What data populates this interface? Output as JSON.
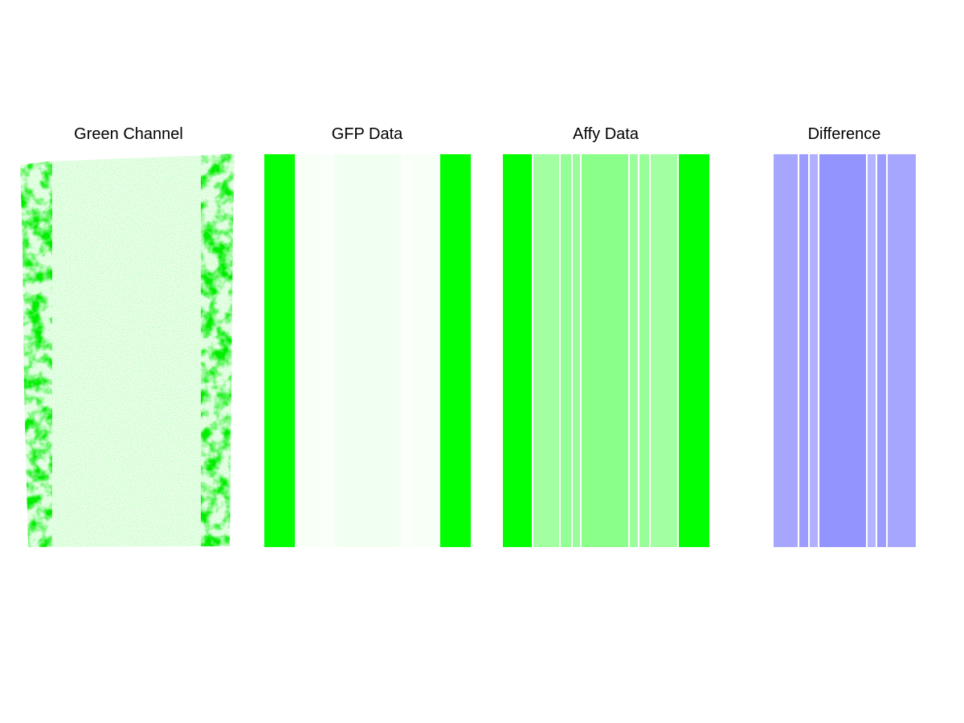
{
  "chart_data": [
    {
      "type": "image",
      "title": "Green Channel",
      "colors": {
        "tissue": "#f2fff2",
        "signal": "#00e000"
      }
    },
    {
      "type": "heatmap",
      "title": "GFP Data",
      "colors": [
        "#00ff00",
        "#f7fff7",
        "#fafffa",
        "#f3fff3",
        "#f1fff1",
        "#f3fff3",
        "#fafffa",
        "#f7fff7",
        "#00ff00"
      ]
    },
    {
      "type": "heatmap",
      "title": "Affy Data",
      "colors": [
        "#00ff00",
        "#a2ffa2",
        "#94ff94",
        "#98ff98",
        "#8aff8a",
        "#9aff9a",
        "#98ff98",
        "#a2ffa2",
        "#00ff00"
      ]
    },
    {
      "type": "heatmap",
      "title": "Difference",
      "colors": [
        "#a6a6ff",
        "#9c9cff",
        "#b0b0ff",
        "#9494ff",
        "#b3b3ff",
        "#9c9cff",
        "#a6a6ff"
      ]
    }
  ]
}
